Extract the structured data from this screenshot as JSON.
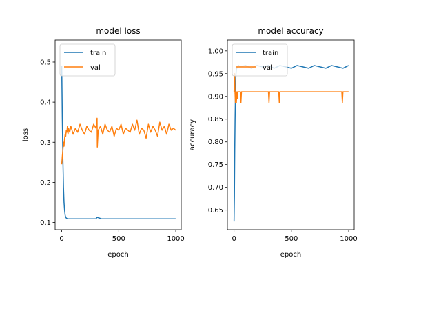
{
  "chart_data": [
    {
      "type": "line",
      "title": "model loss",
      "xlabel": "epoch",
      "ylabel": "loss",
      "xlim": [
        -58,
        1048
      ],
      "ylim": [
        0.082,
        0.555
      ],
      "xticks": [
        0,
        500,
        1000
      ],
      "yticks": [
        0.1,
        0.2,
        0.3,
        0.4,
        0.5
      ],
      "ytick_labels": [
        "0.1",
        "0.2",
        "0.3",
        "0.4",
        "0.5"
      ],
      "grid": false,
      "legend": "upper left",
      "series": [
        {
          "name": "train",
          "color": "#1f77b4",
          "x": [
            0,
            5,
            10,
            15,
            20,
            25,
            30,
            35,
            40,
            50,
            60,
            80,
            100,
            150,
            200,
            250,
            300,
            310,
            350,
            400,
            500,
            600,
            700,
            800,
            900,
            999
          ],
          "y": [
            0.49,
            0.36,
            0.26,
            0.19,
            0.15,
            0.13,
            0.118,
            0.113,
            0.111,
            0.109,
            0.109,
            0.109,
            0.109,
            0.109,
            0.109,
            0.109,
            0.109,
            0.113,
            0.109,
            0.109,
            0.109,
            0.109,
            0.109,
            0.109,
            0.109,
            0.109
          ]
        },
        {
          "name": "val",
          "color": "#ff7f0e",
          "x": [
            0,
            5,
            10,
            15,
            20,
            25,
            30,
            35,
            40,
            45,
            50,
            55,
            60,
            70,
            80,
            90,
            100,
            120,
            140,
            160,
            180,
            200,
            220,
            240,
            260,
            280,
            300,
            310,
            312,
            320,
            340,
            360,
            380,
            400,
            420,
            440,
            460,
            480,
            500,
            520,
            540,
            560,
            580,
            600,
            620,
            640,
            660,
            680,
            700,
            720,
            740,
            760,
            780,
            800,
            820,
            840,
            860,
            880,
            900,
            920,
            940,
            960,
            980,
            999
          ],
          "y": [
            0.245,
            0.265,
            0.28,
            0.3,
            0.29,
            0.31,
            0.32,
            0.315,
            0.33,
            0.325,
            0.34,
            0.32,
            0.335,
            0.325,
            0.34,
            0.33,
            0.32,
            0.335,
            0.325,
            0.345,
            0.33,
            0.32,
            0.34,
            0.33,
            0.325,
            0.345,
            0.335,
            0.36,
            0.288,
            0.33,
            0.34,
            0.32,
            0.345,
            0.33,
            0.325,
            0.34,
            0.315,
            0.335,
            0.33,
            0.345,
            0.32,
            0.335,
            0.33,
            0.325,
            0.345,
            0.33,
            0.355,
            0.32,
            0.335,
            0.33,
            0.31,
            0.345,
            0.325,
            0.34,
            0.33,
            0.315,
            0.35,
            0.33,
            0.34,
            0.32,
            0.345,
            0.33,
            0.335,
            0.33
          ]
        }
      ]
    },
    {
      "type": "line",
      "title": "model accuracy",
      "xlabel": "epoch",
      "ylabel": "accuracy",
      "xlim": [
        -58,
        1048
      ],
      "ylim": [
        0.607,
        1.024
      ],
      "xticks": [
        0,
        500,
        1000
      ],
      "yticks": [
        0.65,
        0.7,
        0.75,
        0.8,
        0.85,
        0.9,
        0.95,
        1.0
      ],
      "ytick_labels": [
        "0.65",
        "0.70",
        "0.75",
        "0.80",
        "0.85",
        "0.90",
        "0.95",
        "1.00"
      ],
      "grid": false,
      "legend": "upper left",
      "series": [
        {
          "name": "train",
          "color": "#1f77b4",
          "x": [
            0,
            3,
            6,
            9,
            12,
            15,
            20,
            25,
            30,
            40,
            50,
            100,
            150,
            200,
            250,
            300,
            350,
            400,
            450,
            500,
            550,
            600,
            650,
            700,
            750,
            800,
            850,
            900,
            950,
            999
          ],
          "y": [
            0.625,
            0.68,
            0.78,
            0.85,
            0.9,
            0.94,
            0.96,
            0.962,
            0.965,
            0.968,
            0.965,
            0.968,
            0.962,
            0.968,
            0.965,
            0.968,
            0.962,
            0.968,
            0.965,
            0.962,
            0.968,
            0.965,
            0.962,
            0.968,
            0.965,
            0.962,
            0.968,
            0.965,
            0.962,
            0.968
          ]
        },
        {
          "name": "val",
          "color": "#ff7f0e",
          "x": [
            0,
            5,
            8,
            12,
            15,
            20,
            25,
            28,
            32,
            40,
            55,
            60,
            65,
            80,
            300,
            305,
            310,
            390,
            395,
            400,
            940,
            945,
            950,
            999
          ],
          "y": [
            0.91,
            0.95,
            0.91,
            0.886,
            0.91,
            0.886,
            0.91,
            0.895,
            0.91,
            0.91,
            0.91,
            0.886,
            0.91,
            0.91,
            0.91,
            0.886,
            0.91,
            0.91,
            0.886,
            0.91,
            0.91,
            0.886,
            0.91,
            0.91
          ]
        }
      ]
    }
  ]
}
